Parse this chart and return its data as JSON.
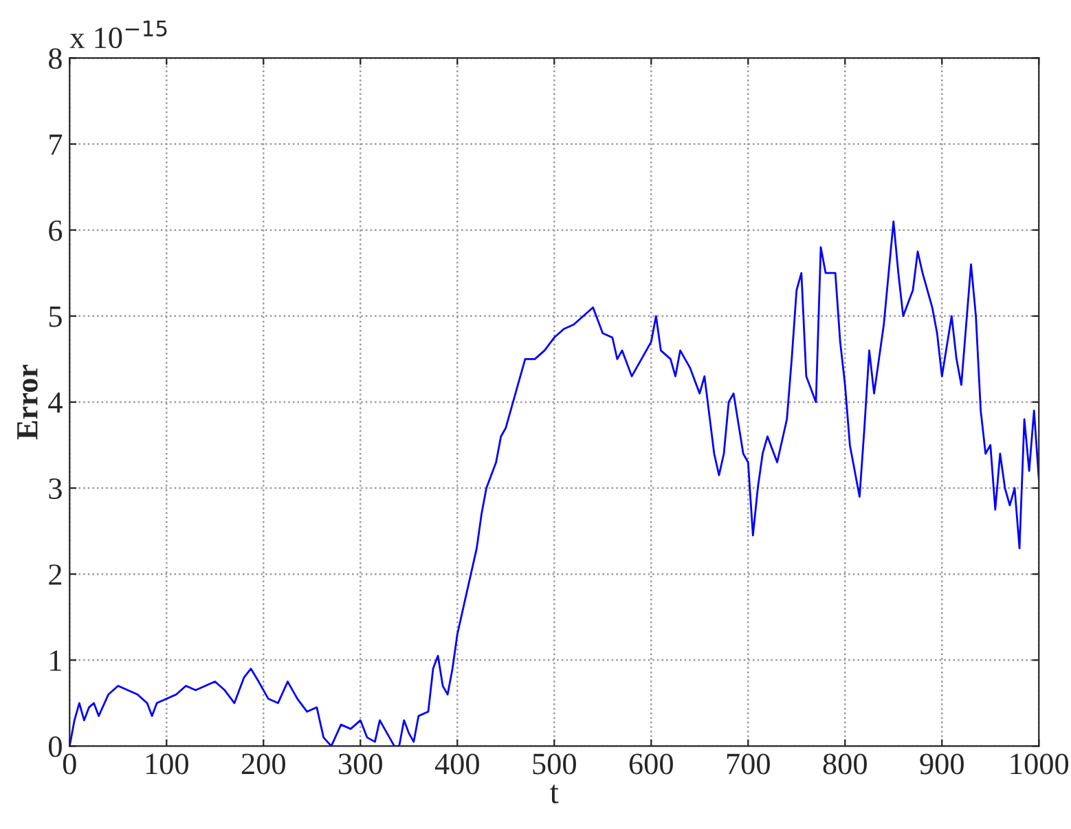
{
  "chart_data": {
    "type": "line",
    "xlabel": "t",
    "ylabel": "Error",
    "annotations": [
      "x 10$^{−15}$"
    ],
    "xlim": [
      0,
      1000
    ],
    "ylim": [
      0,
      8
    ],
    "xticks": [
      0,
      100,
      200,
      300,
      400,
      500,
      600,
      700,
      800,
      900,
      1000
    ],
    "yticks": [
      0,
      1,
      2,
      3,
      4,
      5,
      6,
      7,
      8
    ],
    "grid": true,
    "line_style": "solid",
    "marker": "none",
    "x": [
      0,
      5,
      10,
      15,
      20,
      25,
      30,
      40,
      50,
      60,
      70,
      80,
      85,
      90,
      100,
      110,
      120,
      130,
      140,
      150,
      160,
      170,
      180,
      187,
      195,
      205,
      215,
      225,
      235,
      245,
      255,
      262,
      270,
      280,
      290,
      300,
      307,
      315,
      320,
      330,
      335,
      340,
      345,
      350,
      355,
      360,
      370,
      375,
      380,
      385,
      390,
      395,
      400,
      410,
      420,
      425,
      430,
      440,
      445,
      450,
      460,
      470,
      480,
      490,
      500,
      510,
      520,
      530,
      540,
      550,
      560,
      565,
      570,
      580,
      590,
      600,
      605,
      610,
      620,
      625,
      630,
      640,
      650,
      655,
      665,
      670,
      675,
      680,
      685,
      695,
      700,
      705,
      710,
      715,
      720,
      730,
      740,
      745,
      750,
      755,
      760,
      770,
      775,
      780,
      790,
      795,
      800,
      805,
      810,
      815,
      820,
      825,
      830,
      835,
      840,
      850,
      855,
      860,
      870,
      875,
      880,
      890,
      895,
      900,
      910,
      915,
      920,
      930,
      935,
      940,
      945,
      950,
      955,
      960,
      965,
      970,
      975,
      980,
      985,
      990,
      995,
      1000
    ],
    "series": [
      {
        "color": "#0000ff",
        "values": [
          0,
          0.3,
          0.5,
          0.3,
          0.45,
          0.5,
          0.35,
          0.6,
          0.7,
          0.65,
          0.6,
          0.5,
          0.35,
          0.5,
          0.55,
          0.6,
          0.7,
          0.65,
          0.7,
          0.75,
          0.65,
          0.5,
          0.8,
          0.9,
          0.75,
          0.55,
          0.5,
          0.75,
          0.55,
          0.4,
          0.45,
          0.1,
          0.0,
          0.25,
          0.2,
          0.3,
          0.1,
          0.05,
          0.3,
          0.1,
          0.0,
          0.0,
          0.3,
          0.15,
          0.05,
          0.35,
          0.4,
          0.9,
          1.05,
          0.7,
          0.6,
          0.9,
          1.3,
          1.8,
          2.3,
          2.7,
          3.0,
          3.3,
          3.6,
          3.7,
          4.1,
          4.5,
          4.5,
          4.6,
          4.75,
          4.85,
          4.9,
          5.0,
          5.1,
          4.8,
          4.75,
          4.5,
          4.6,
          4.3,
          4.5,
          4.7,
          5.0,
          4.6,
          4.5,
          4.3,
          4.6,
          4.4,
          4.1,
          4.3,
          3.4,
          3.15,
          3.4,
          4.0,
          4.1,
          3.4,
          3.3,
          2.45,
          3.0,
          3.4,
          3.6,
          3.3,
          3.8,
          4.5,
          5.3,
          5.5,
          4.3,
          4.0,
          5.8,
          5.5,
          5.5,
          4.7,
          4.2,
          3.5,
          3.2,
          2.9,
          3.7,
          4.6,
          4.1,
          4.5,
          4.9,
          6.1,
          5.5,
          5.0,
          5.3,
          5.75,
          5.5,
          5.1,
          4.8,
          4.3,
          5.0,
          4.5,
          4.2,
          5.6,
          5.0,
          3.9,
          3.4,
          3.5,
          2.75,
          3.4,
          3.0,
          2.8,
          3.0,
          2.3,
          3.8,
          3.2,
          3.9,
          3.1
        ]
      }
    ]
  }
}
